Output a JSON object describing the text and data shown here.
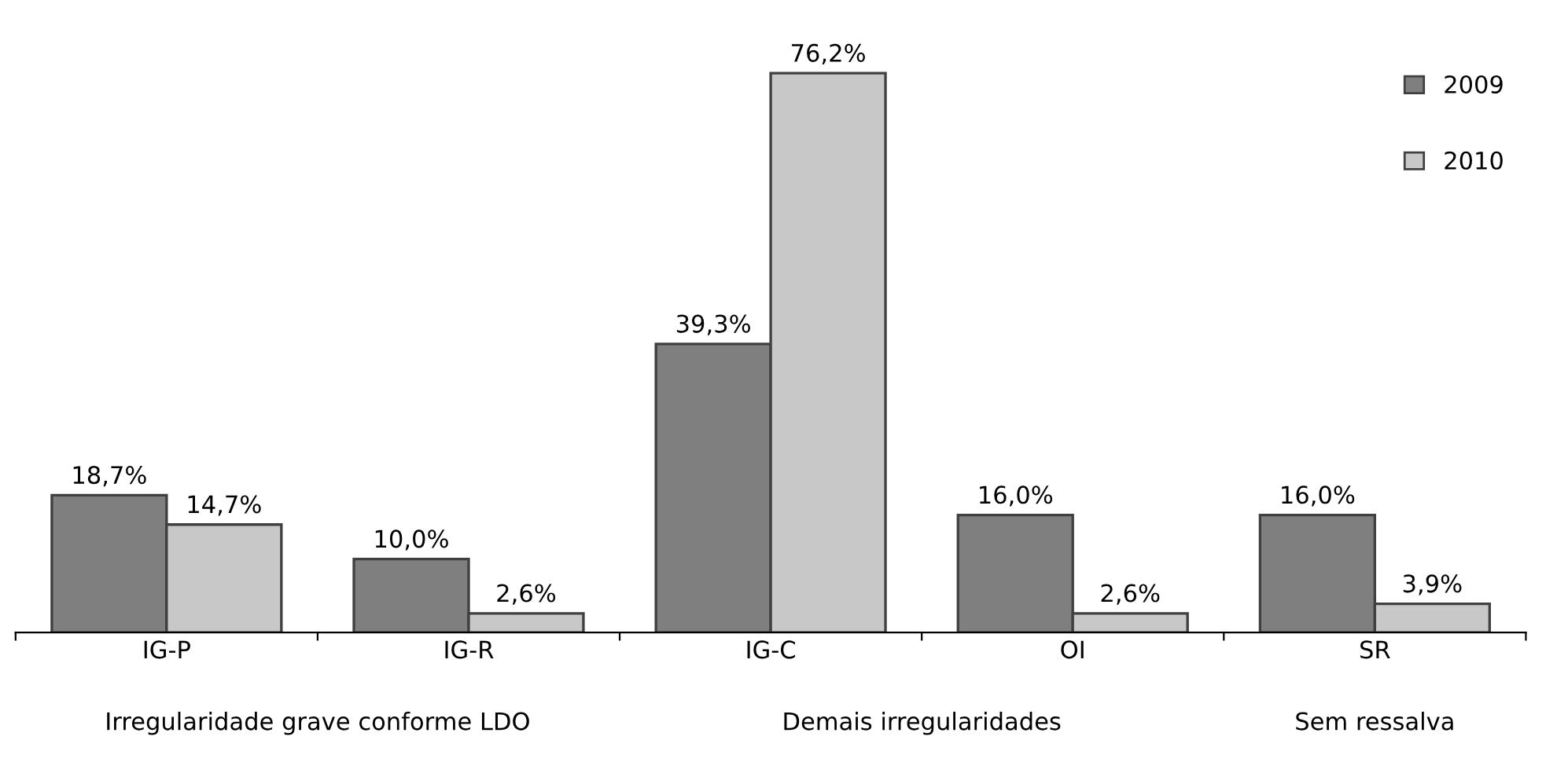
{
  "chart_data": {
    "type": "bar",
    "categories": [
      "IG-P",
      "IG-R",
      "IG-C",
      "OI",
      "SR"
    ],
    "series": [
      {
        "name": "2009",
        "color": "#7f7f7f",
        "values": [
          18.7,
          10.0,
          39.3,
          16.0,
          16.0
        ],
        "value_labels": [
          "18,7%",
          "10,0%",
          "39,3%",
          "16,0%",
          "16,0%"
        ]
      },
      {
        "name": "2010",
        "color": "#c8c8c8",
        "values": [
          14.7,
          2.6,
          76.2,
          2.6,
          3.9
        ],
        "value_labels": [
          "14,7%",
          "2,6%",
          "76,2%",
          "2,6%",
          "3,9%"
        ]
      }
    ],
    "annotations": [
      "Irregularidade grave conforme LDO",
      "Demais irregularidades",
      "Sem ressalva"
    ],
    "legend": "top right",
    "grid": false
  }
}
